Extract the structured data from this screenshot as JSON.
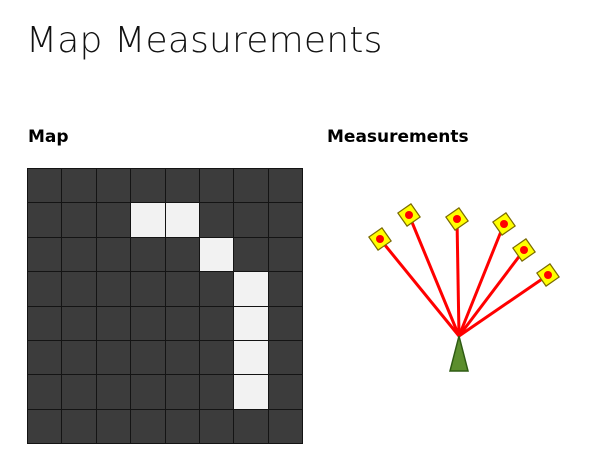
{
  "page": {
    "title": "Map Measurements",
    "map_label": "Map",
    "measurements_label": "Measurements"
  },
  "map": {
    "rows": 8,
    "cols": 8,
    "free_cells": [
      [
        1,
        3
      ],
      [
        1,
        4
      ],
      [
        2,
        5
      ],
      [
        3,
        6
      ],
      [
        4,
        6
      ],
      [
        5,
        6
      ],
      [
        6,
        6
      ]
    ],
    "occupied_color": "#3c3c3c",
    "free_color": "#f2f2f2",
    "grid_line_color": "#141414"
  },
  "measurements": {
    "beam_count": 6,
    "beam_color": "#ff0000",
    "endpoint_fill": "#ffff00",
    "endpoint_outline": "#7a6a00",
    "dot_color": "#ff0000",
    "sensor_color": "#5b8e2d",
    "sensor_outline": "#2e5b13"
  }
}
